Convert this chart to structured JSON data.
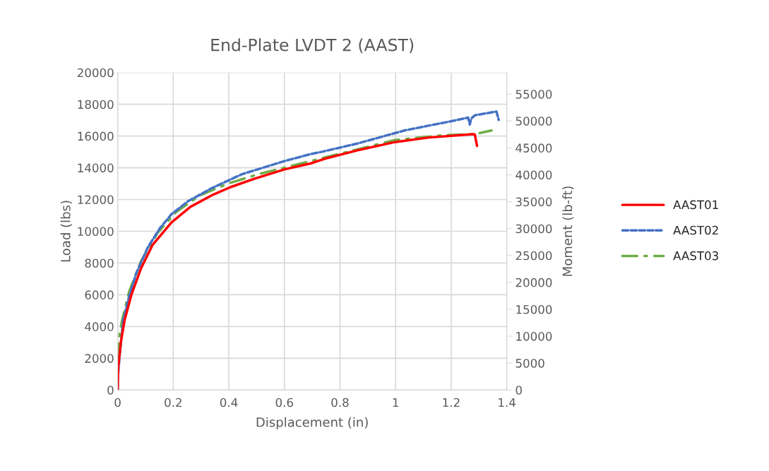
{
  "chart_data": {
    "type": "line",
    "title": "End-Plate LVDT 2 (AAST)",
    "xlabel": "Displacement (in)",
    "ylabel": "Load (lbs)",
    "y2label": "Moment (lb-ft)",
    "xlim": [
      0,
      1.4
    ],
    "xticks": [
      0,
      0.2,
      0.4,
      0.6,
      0.8,
      1,
      1.2,
      1.4
    ],
    "ylim": [
      0,
      20000
    ],
    "yticks": [
      0,
      2000,
      4000,
      6000,
      8000,
      10000,
      12000,
      14000,
      16000,
      18000,
      20000
    ],
    "y2lim": [
      0,
      59000
    ],
    "y2ticks": [
      0,
      5000,
      10000,
      15000,
      20000,
      25000,
      30000,
      35000,
      40000,
      45000,
      50000,
      55000
    ],
    "grid": true,
    "legend": "right",
    "marker": "none",
    "series": [
      {
        "name": "AAST01",
        "color": "#ff0000",
        "line_style": "solid",
        "x": [
          0,
          0.002,
          0.012,
          0.025,
          0.05,
          0.084,
          0.126,
          0.194,
          0.262,
          0.338,
          0.406,
          0.49,
          0.6,
          0.694,
          0.745,
          0.863,
          0.998,
          1.117,
          1.278,
          1.285,
          1.293
        ],
        "values": [
          0,
          1430,
          3070,
          4400,
          6030,
          7660,
          9150,
          10560,
          11540,
          12260,
          12780,
          13300,
          13900,
          14270,
          14570,
          15100,
          15620,
          15900,
          16120,
          16100,
          15380
        ]
      },
      {
        "name": "AAST02",
        "color": "#4472c4",
        "line_style": "dashed",
        "x": [
          0,
          0.001,
          0.008,
          0.02,
          0.041,
          0.067,
          0.109,
          0.152,
          0.194,
          0.253,
          0.338,
          0.448,
          0.6,
          0.694,
          0.736,
          0.863,
          1.032,
          1.202,
          1.261,
          1.267,
          1.272,
          1.286,
          1.363,
          1.371
        ],
        "values": [
          0,
          840,
          2320,
          4400,
          5880,
          7360,
          9000,
          10190,
          11080,
          11890,
          12710,
          13600,
          14420,
          14860,
          15010,
          15530,
          16350,
          16940,
          17160,
          16720,
          17100,
          17310,
          17540,
          17020
        ]
      },
      {
        "name": "AAST03",
        "color": "#70ad47",
        "line_style": "dashdot",
        "x": [
          0,
          0,
          0.003,
          0.016,
          0.041,
          0.084,
          0.143,
          0.211,
          0.296,
          0.397,
          0.507,
          0.626,
          0.728,
          0.795,
          0.998,
          1.168,
          1.286,
          1.345
        ],
        "values": [
          0,
          240,
          3070,
          4400,
          6180,
          8110,
          9890,
          11220,
          12260,
          13000,
          13600,
          14120,
          14570,
          14860,
          15750,
          16050,
          16120,
          16350
        ]
      }
    ]
  }
}
